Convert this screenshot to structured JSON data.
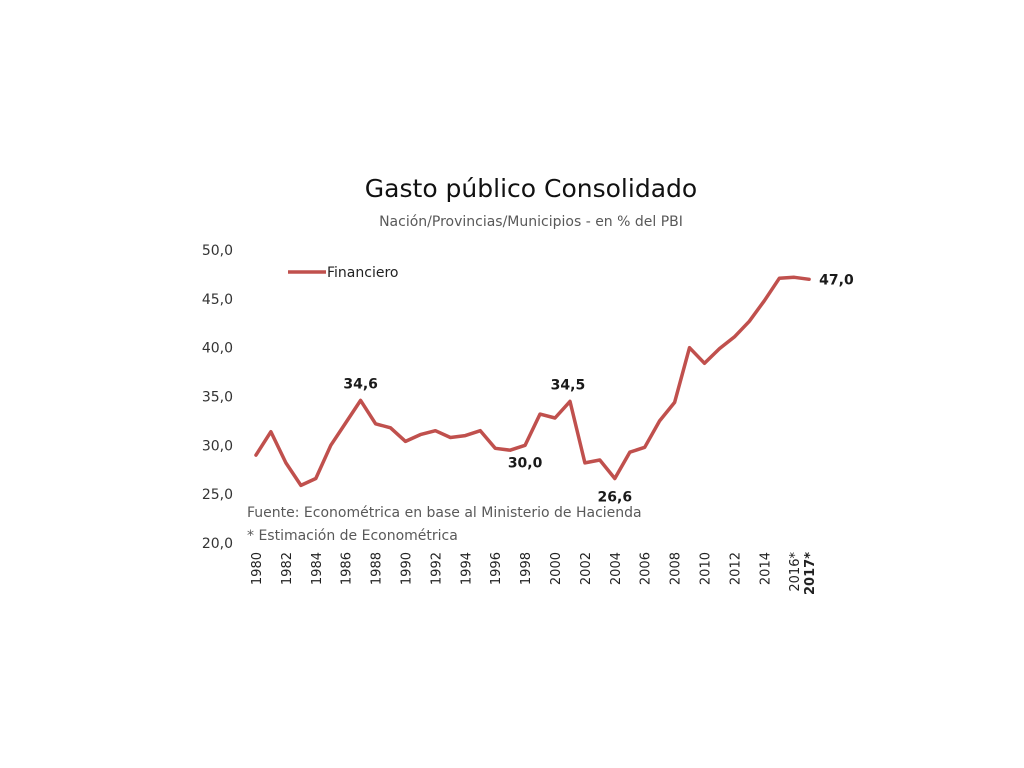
{
  "chart_data": {
    "type": "line",
    "title": "Gasto público Consolidado",
    "subtitle": "Nación/Provincias/Municipios  - en % del PBI",
    "xlabel": "",
    "ylabel": "",
    "ylim": [
      20,
      50
    ],
    "y_ticks": [
      "20,0",
      "25,0",
      "30,0",
      "35,0",
      "40,0",
      "45,0",
      "50,0"
    ],
    "x": [
      "1980",
      "1981",
      "1982",
      "1983",
      "1984",
      "1985",
      "1986",
      "1987",
      "1988",
      "1989",
      "1990",
      "1991",
      "1992",
      "1993",
      "1994",
      "1995",
      "1996",
      "1997",
      "1998",
      "1999",
      "2000",
      "2001",
      "2002",
      "2003",
      "2004",
      "2005",
      "2006",
      "2007",
      "2008",
      "2009",
      "2010",
      "2011",
      "2012",
      "2013",
      "2014",
      "2015",
      "2016*",
      "2017*"
    ],
    "x_tick_labels": [
      "1980",
      "1982",
      "1984",
      "1986",
      "1988",
      "1990",
      "1992",
      "1994",
      "1996",
      "1998",
      "2000",
      "2002",
      "2004",
      "2006",
      "2008",
      "2010",
      "2012",
      "2014",
      "2016*",
      "2017*"
    ],
    "grid": false,
    "legend_position": "top-left",
    "color": "#c0504d",
    "series": [
      {
        "name": "Financiero",
        "values": [
          29.0,
          31.4,
          28.2,
          25.9,
          26.6,
          30.0,
          32.3,
          34.6,
          32.2,
          31.8,
          30.4,
          31.1,
          31.5,
          30.8,
          31.0,
          31.5,
          29.7,
          29.5,
          30.0,
          33.2,
          32.8,
          34.5,
          28.2,
          28.5,
          26.6,
          29.3,
          29.8,
          32.5,
          34.4,
          40.0,
          38.4,
          39.9,
          41.1,
          42.7,
          44.8,
          47.1,
          47.2,
          47.0
        ]
      }
    ],
    "annotations": [
      {
        "label": "34,6",
        "year": "1987"
      },
      {
        "label": "34,5",
        "year": "2001"
      },
      {
        "label": "30,0",
        "year": "1998"
      },
      {
        "label": "26,6",
        "year": "2004"
      },
      {
        "label": "47,0",
        "year": "2017*"
      }
    ],
    "notes": [
      "Fuente: Econométrica en base al Ministerio de Hacienda",
      "* Estimación de Econométrica"
    ]
  }
}
